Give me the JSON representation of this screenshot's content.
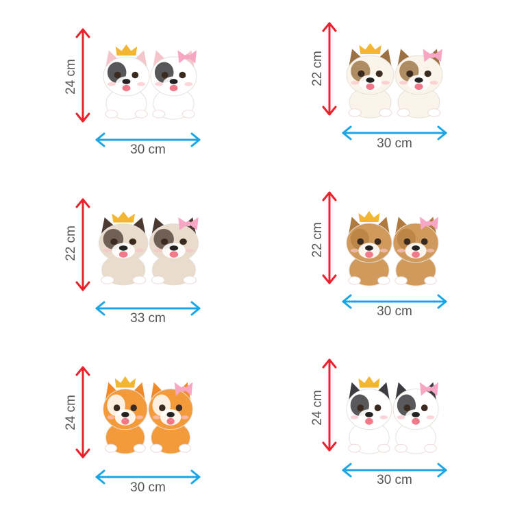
{
  "colors": {
    "height_arrow": "#e8222c",
    "width_arrow": "#1aa6e6",
    "label_text": "#555555",
    "crown": "#f2b632",
    "bow": "#f7a6c4"
  },
  "stickers": [
    {
      "height_label": "24 cm",
      "width_label": "30 cm",
      "fur": "#ffffff",
      "patch": "#3a3a3c",
      "ear": "#f4c6cc"
    },
    {
      "height_label": "22 cm",
      "width_label": "30 cm",
      "fur": "#fbf4ea",
      "patch": "#a07a4c",
      "ear": "#9c7245"
    },
    {
      "height_label": "22 cm",
      "width_label": "33 cm",
      "fur": "#e9dccd",
      "patch": "#5b4a40",
      "ear": "#4a3a32"
    },
    {
      "height_label": "22 cm",
      "width_label": "30 cm",
      "fur": "#d09a5c",
      "patch": "#b98345",
      "ear": "#b07a3e"
    },
    {
      "height_label": "24 cm",
      "width_label": "30 cm",
      "fur": "#f39a3a",
      "patch": "#ffffff",
      "ear": "#f08a2a"
    },
    {
      "height_label": "24 cm",
      "width_label": "30 cm",
      "fur": "#ffffff",
      "patch": "#3c3c40",
      "ear": "#3c3c40"
    }
  ]
}
